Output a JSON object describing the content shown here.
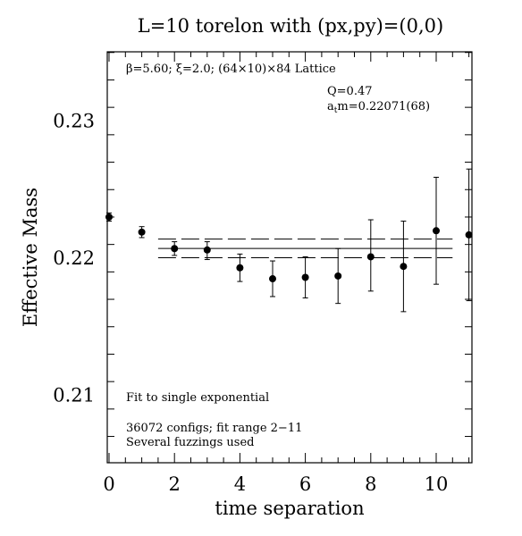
{
  "chart_data": {
    "type": "scatter",
    "title": "L=10 torelon with (px,py)=(0,0)",
    "xlabel": "time separation",
    "ylabel": "Effective Mass",
    "xlim": [
      0,
      11
    ],
    "ylim": [
      0.205,
      0.235
    ],
    "x_ticks": [
      0,
      2,
      4,
      6,
      8,
      10
    ],
    "x_tick_labels": [
      "0",
      "2",
      "4",
      "6",
      "8",
      "10"
    ],
    "y_ticks": [
      0.21,
      0.22,
      0.23
    ],
    "y_tick_labels": [
      "0.21",
      "0.22",
      "0.23"
    ],
    "grid": false,
    "legend": "none",
    "points": [
      {
        "x": 0,
        "y": 0.223,
        "err_lo": 0.0003,
        "err_hi": 0.0003
      },
      {
        "x": 1,
        "y": 0.2219,
        "err_lo": 0.0004,
        "err_hi": 0.0004
      },
      {
        "x": 2,
        "y": 0.2207,
        "err_lo": 0.0005,
        "err_hi": 0.0005
      },
      {
        "x": 3,
        "y": 0.2206,
        "err_lo": 0.0007,
        "err_hi": 0.0006
      },
      {
        "x": 4,
        "y": 0.2193,
        "err_lo": 0.001,
        "err_hi": 0.001
      },
      {
        "x": 5,
        "y": 0.2185,
        "err_lo": 0.0013,
        "err_hi": 0.0013
      },
      {
        "x": 6,
        "y": 0.2186,
        "err_lo": 0.0015,
        "err_hi": 0.0015
      },
      {
        "x": 7,
        "y": 0.2187,
        "err_lo": 0.002,
        "err_hi": 0.002
      },
      {
        "x": 8,
        "y": 0.2201,
        "err_lo": 0.0025,
        "err_hi": 0.0027
      },
      {
        "x": 9,
        "y": 0.2194,
        "err_lo": 0.0033,
        "err_hi": 0.0033
      },
      {
        "x": 10,
        "y": 0.222,
        "err_lo": 0.0039,
        "err_hi": 0.0039
      },
      {
        "x": 11,
        "y": 0.2217,
        "err_lo": 0.0048,
        "err_hi": 0.0048
      }
    ],
    "fit": {
      "value": 0.22071,
      "error": 0.00068,
      "x_range": [
        1.5,
        10.5
      ]
    },
    "annotations": {
      "lattice": "β=5.60; ξ=2.0; (64×10)×84 Lattice",
      "q_value": "Q=0.47",
      "mass_prefix": "a",
      "mass_sub": "t",
      "mass_suffix": "m=0.22071(68)",
      "fit_type": "Fit to single exponential",
      "configs": "36072 configs; fit range 2−11",
      "fuzzing": "Several fuzzings used"
    }
  }
}
